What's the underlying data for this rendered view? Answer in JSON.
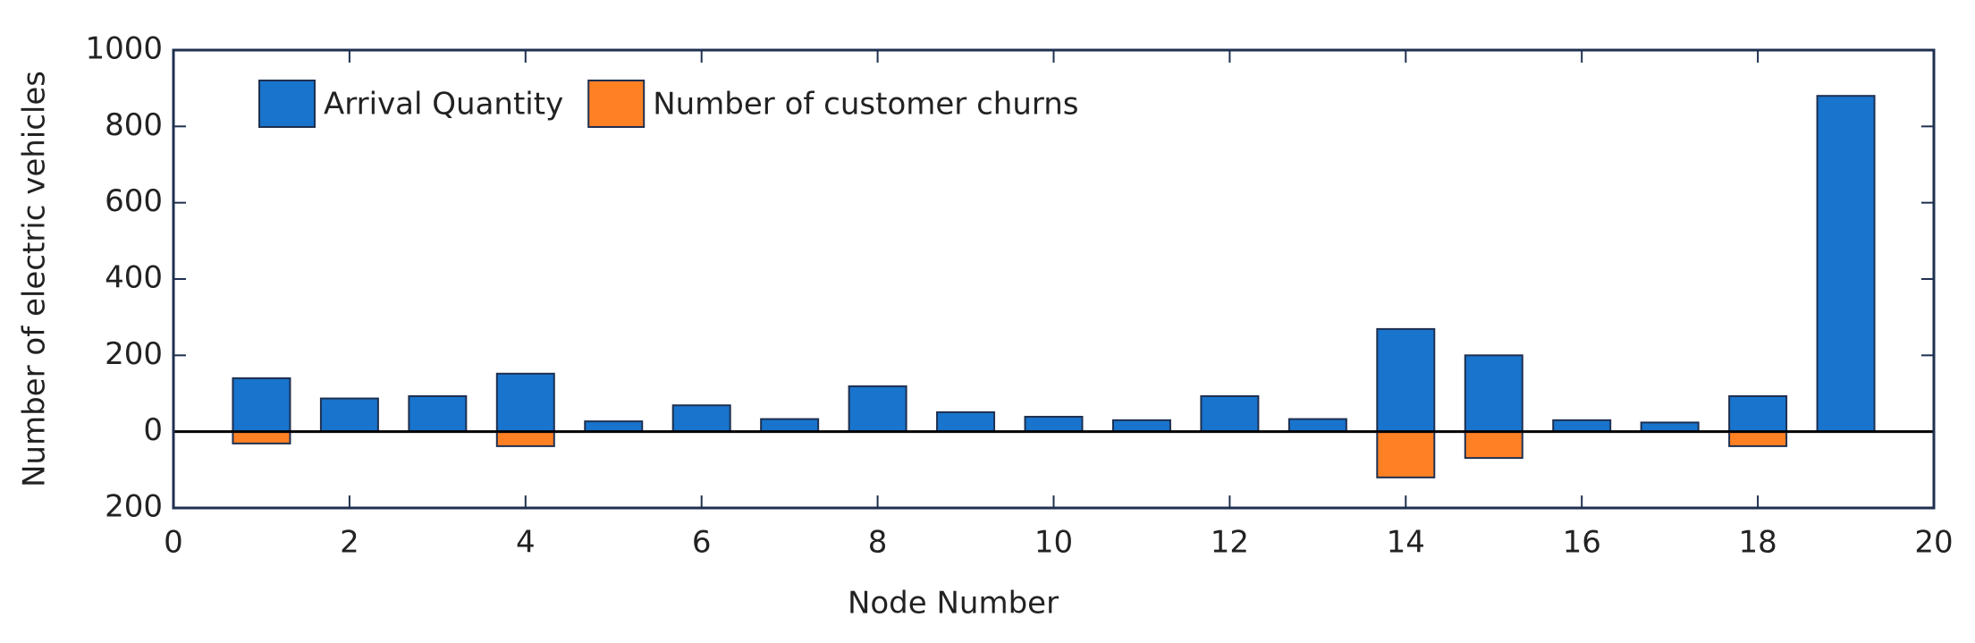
{
  "chart_data": {
    "type": "bar",
    "xlabel": "Node Number",
    "ylabel": "Number of electric vehicles",
    "x": [
      1,
      2,
      3,
      4,
      5,
      6,
      7,
      8,
      9,
      10,
      11,
      12,
      13,
      14,
      15,
      16,
      17,
      18,
      19
    ],
    "series": [
      {
        "name": "Arrival Quantity",
        "color": "#1874cd",
        "values": [
          140,
          87,
          93,
          152,
          27,
          69,
          33,
          119,
          51,
          39,
          30,
          93,
          33,
          269,
          200,
          30,
          24,
          93,
          880
        ]
      },
      {
        "name": "Number of customer churns",
        "color": "#ff8124",
        "values": [
          -31,
          0,
          0,
          -38,
          0,
          0,
          0,
          0,
          0,
          0,
          0,
          0,
          0,
          -120,
          -69,
          0,
          0,
          -38,
          0
        ]
      }
    ],
    "xlim": [
      0,
      20
    ],
    "xticks": [
      0,
      2,
      4,
      6,
      8,
      10,
      12,
      14,
      16,
      18,
      20
    ],
    "ylim": [
      -200,
      1000
    ],
    "yticks": [
      {
        "value": -200,
        "label": "200"
      },
      0,
      200,
      400,
      600,
      800,
      1000
    ],
    "legend": "upper left"
  }
}
